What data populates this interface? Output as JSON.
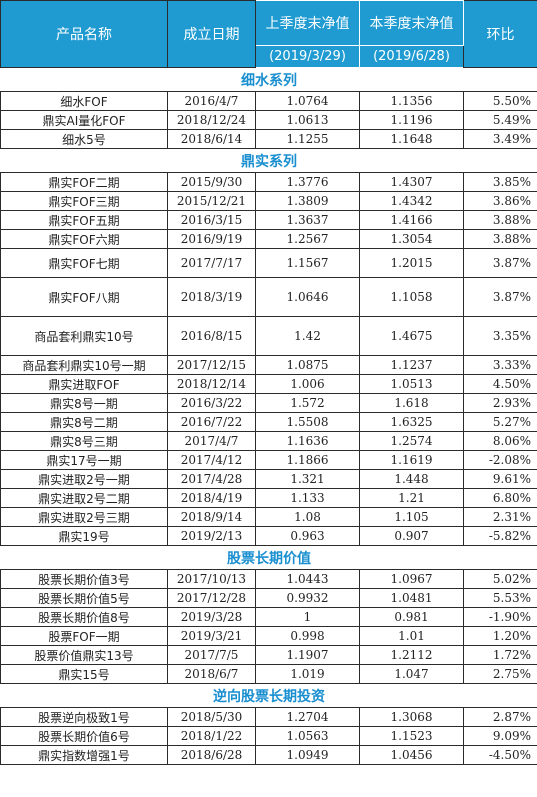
{
  "header": {
    "product": "产品名称",
    "established": "成立日期",
    "last_q": "上季度末净值",
    "this_q": "本季度末净值",
    "qoq": "环比",
    "last_q_date": "(2019/3/29)",
    "this_q_date": "(2019/6/28)"
  },
  "sections": [
    {
      "title": "细水系列",
      "rows": [
        {
          "name": "细水FOF",
          "date": "2016/4/7",
          "last": "1.0764",
          "curr": "1.1356",
          "qoq": "5.50%",
          "h": 19
        },
        {
          "name": "鼎实AI量化FOF",
          "date": "2018/12/24",
          "last": "1.0613",
          "curr": "1.1196",
          "qoq": "5.49%",
          "h": 19
        },
        {
          "name": "细水5号",
          "date": "2018/6/14",
          "last": "1.1255",
          "curr": "1.1648",
          "qoq": "3.49%",
          "h": 19
        }
      ]
    },
    {
      "title": "鼎实系列",
      "rows": [
        {
          "name": "鼎实FOF二期",
          "date": "2015/9/30",
          "last": "1.3776",
          "curr": "1.4307",
          "qoq": "3.85%",
          "h": 19
        },
        {
          "name": "鼎实FOF三期",
          "date": "2015/12/21",
          "last": "1.3809",
          "curr": "1.4342",
          "qoq": "3.86%",
          "h": 19
        },
        {
          "name": "鼎实FOF五期",
          "date": "2016/3/15",
          "last": "1.3637",
          "curr": "1.4166",
          "qoq": "3.88%",
          "h": 19
        },
        {
          "name": "鼎实FOF六期",
          "date": "2016/9/19",
          "last": "1.2567",
          "curr": "1.3054",
          "qoq": "3.88%",
          "h": 19
        },
        {
          "name": "鼎实FOF七期",
          "date": "2017/7/17",
          "last": "1.1567",
          "curr": "1.2015",
          "qoq": "3.87%",
          "h": 29
        },
        {
          "name": "鼎实FOF八期",
          "date": "2018/3/19",
          "last": "1.0646",
          "curr": "1.1058",
          "qoq": "3.87%",
          "h": 39
        },
        {
          "name": "商品套利鼎实10号",
          "date": "2016/8/15",
          "last": "1.42",
          "curr": "1.4675",
          "qoq": "3.35%",
          "h": 39
        },
        {
          "name": "商品套利鼎实10号一期",
          "date": "2017/12/15",
          "last": "1.0875",
          "curr": "1.1237",
          "qoq": "3.33%",
          "h": 19
        },
        {
          "name": "鼎实进取FOF",
          "date": "2018/12/14",
          "last": "1.006",
          "curr": "1.0513",
          "qoq": "4.50%",
          "h": 19
        },
        {
          "name": "鼎实8号一期",
          "date": "2016/3/22",
          "last": "1.572",
          "curr": "1.618",
          "qoq": "2.93%",
          "h": 19
        },
        {
          "name": "鼎实8号二期",
          "date": "2016/7/22",
          "last": "1.5508",
          "curr": "1.6325",
          "qoq": "5.27%",
          "h": 19
        },
        {
          "name": "鼎实8号三期",
          "date": "2017/4/7",
          "last": "1.1636",
          "curr": "1.2574",
          "qoq": "8.06%",
          "h": 19
        },
        {
          "name": "鼎实17号一期",
          "date": "2017/4/12",
          "last": "1.1866",
          "curr": "1.1619",
          "qoq": "-2.08%",
          "h": 19
        },
        {
          "name": "鼎实进取2号一期",
          "date": "2017/4/28",
          "last": "1.321",
          "curr": "1.448",
          "qoq": "9.61%",
          "h": 19
        },
        {
          "name": "鼎实进取2号二期",
          "date": "2018/4/19",
          "last": "1.133",
          "curr": "1.21",
          "qoq": "6.80%",
          "h": 19
        },
        {
          "name": "鼎实进取2号三期",
          "date": "2018/9/14",
          "last": "1.08",
          "curr": "1.105",
          "qoq": "2.31%",
          "h": 19
        },
        {
          "name": "鼎实19号",
          "date": "2019/2/13",
          "last": "0.963",
          "curr": "0.907",
          "qoq": "-5.82%",
          "h": 19
        }
      ]
    },
    {
      "title": "股票长期价值",
      "rows": [
        {
          "name": "股票长期价值3号",
          "date": "2017/10/13",
          "last": "1.0443",
          "curr": "1.0967",
          "qoq": "5.02%",
          "h": 19
        },
        {
          "name": "股票长期价值5号",
          "date": "2017/12/28",
          "last": "0.9932",
          "curr": "1.0481",
          "qoq": "5.53%",
          "h": 19
        },
        {
          "name": "股票长期价值8号",
          "date": "2019/3/28",
          "last": "1",
          "curr": "0.981",
          "qoq": "-1.90%",
          "h": 19
        },
        {
          "name": "股票FOF一期",
          "date": "2019/3/21",
          "last": "0.998",
          "curr": "1.01",
          "qoq": "1.20%",
          "h": 19
        },
        {
          "name": "股票价值鼎实13号",
          "date": "2017/7/5",
          "last": "1.1907",
          "curr": "1.2112",
          "qoq": "1.72%",
          "h": 19
        },
        {
          "name": "鼎实15号",
          "date": "2018/6/7",
          "last": "1.019",
          "curr": "1.047",
          "qoq": "2.75%",
          "h": 19
        }
      ]
    },
    {
      "title": "逆向股票长期投资",
      "rows": [
        {
          "name": "股票逆向极致1号",
          "date": "2018/5/30",
          "last": "1.2704",
          "curr": "1.3068",
          "qoq": "2.87%",
          "h": 19
        },
        {
          "name": "股票长期价值6号",
          "date": "2018/1/22",
          "last": "1.0563",
          "curr": "1.1523",
          "qoq": "9.09%",
          "h": 19
        },
        {
          "name": "鼎实指数增强1号",
          "date": "2018/6/28",
          "last": "1.0949",
          "curr": "1.0456",
          "qoq": "-4.50%",
          "h": 19
        }
      ]
    }
  ]
}
